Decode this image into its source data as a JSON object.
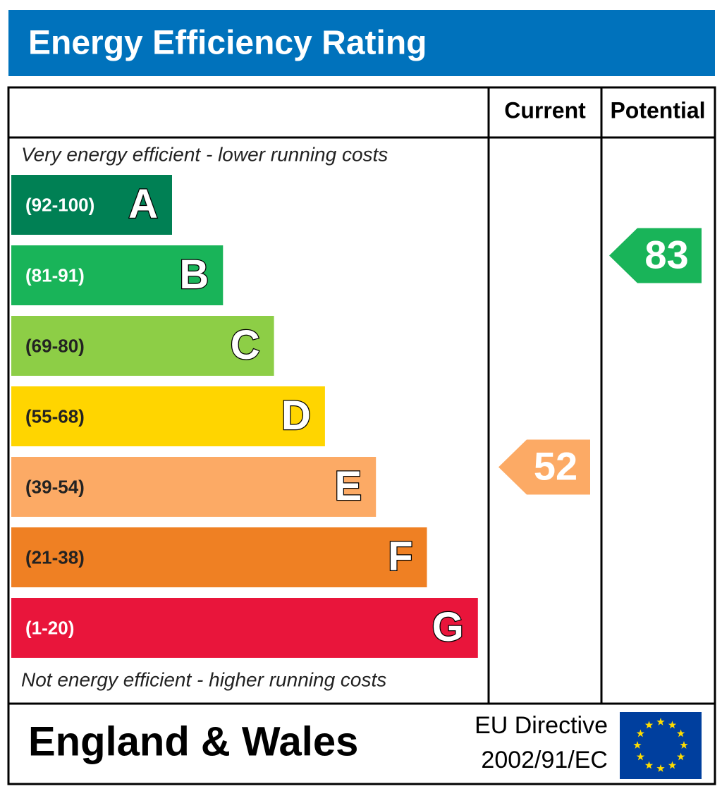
{
  "title": "Energy Efficiency Rating",
  "headers": [
    "Current",
    "Potential"
  ],
  "top_note": "Very energy efficient - lower running costs",
  "bottom_note": "Not energy efficient - higher running costs",
  "bands": [
    {
      "range": "(92-100)",
      "letter": "A",
      "color": "#008054"
    },
    {
      "range": "(81-91)",
      "letter": "B",
      "color": "#19b459"
    },
    {
      "range": "(69-80)",
      "letter": "C",
      "color": "#8dce46"
    },
    {
      "range": "(55-68)",
      "letter": "D",
      "color": "#ffd500"
    },
    {
      "range": "(39-54)",
      "letter": "E",
      "color": "#fcaa65"
    },
    {
      "range": "(21-38)",
      "letter": "F",
      "color": "#ef8023"
    },
    {
      "range": "(1-20)",
      "letter": "G",
      "color": "#e9153b"
    }
  ],
  "current": {
    "value": 52,
    "color": "#fcaa65"
  },
  "potential": {
    "value": 83,
    "color": "#19b459"
  },
  "footer": {
    "region": "England & Wales",
    "directive": [
      "EU Directive",
      "2002/91/EC"
    ]
  }
}
